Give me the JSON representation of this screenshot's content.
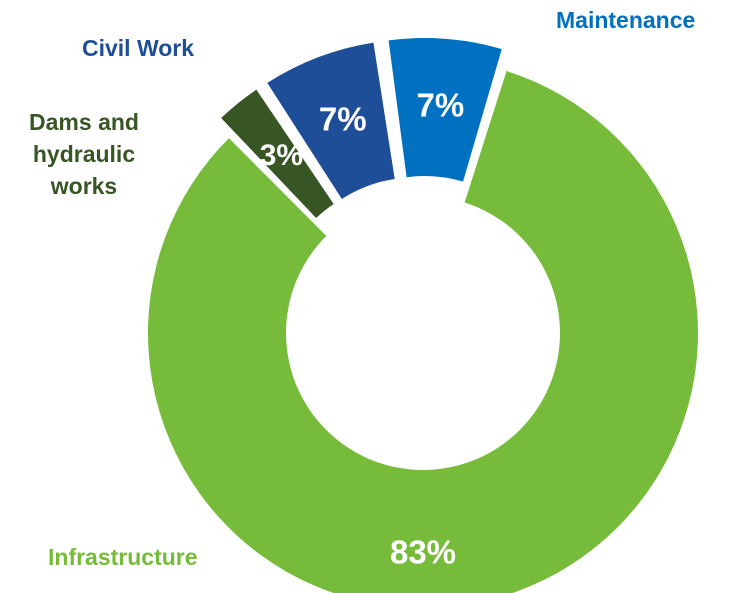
{
  "chart_data": {
    "type": "pie",
    "variant": "donut",
    "title": "",
    "categories": [
      "Infrastructure",
      "Dams and hydraulic works",
      "Civil Work",
      "Maintenance"
    ],
    "values": [
      83,
      3,
      7,
      7
    ],
    "data_labels": [
      "83%",
      "3%",
      "7%",
      "7%"
    ],
    "colors": [
      "#76bc3a",
      "#375623",
      "#1f4e99",
      "#0070c0"
    ],
    "exploded": [
      "Dams and hydraulic works",
      "Civil Work",
      "Maintenance"
    ],
    "legend": "none"
  },
  "labels": {
    "infrastructure": "Infrastructure",
    "dams": "Dams and\nhydraulic\nworks",
    "civil": "Civil Work",
    "maintenance": "Maintenance"
  }
}
